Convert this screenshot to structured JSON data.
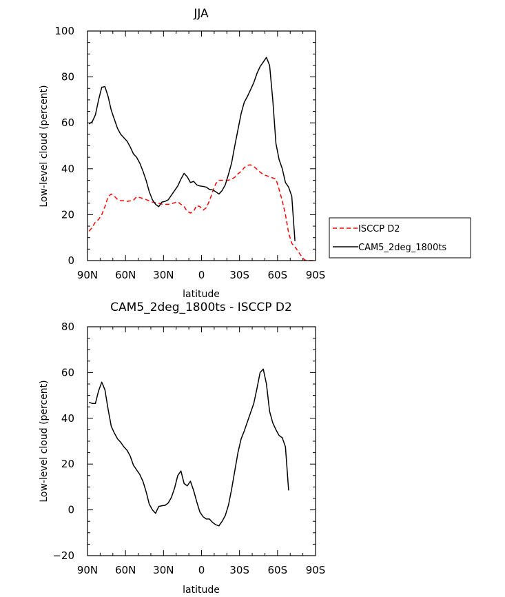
{
  "chart_data": [
    {
      "type": "line",
      "title": "JJA",
      "xlabel": "latitude",
      "ylabel": "Low-level cloud (percent)",
      "xlim": [
        90,
        -90
      ],
      "ylim": [
        0,
        100
      ],
      "xticks": [
        {
          "value": 90,
          "label": "90N"
        },
        {
          "value": 60,
          "label": "60N"
        },
        {
          "value": 30,
          "label": "30N"
        },
        {
          "value": 0,
          "label": "0"
        },
        {
          "value": -30,
          "label": "30S"
        },
        {
          "value": -60,
          "label": "60S"
        },
        {
          "value": -90,
          "label": "90S"
        }
      ],
      "yticks": [
        0,
        20,
        40,
        60,
        80,
        100
      ],
      "legend_position": "right",
      "series": [
        {
          "name": "ISCCP D2",
          "color": "#ff0000",
          "dash": "dashed",
          "points": [
            [
              88.75,
              12.8
            ],
            [
              86.25,
              14.5
            ],
            [
              83.75,
              16.8
            ],
            [
              81.25,
              17.9
            ],
            [
              78.75,
              20.0
            ],
            [
              76.25,
              23.5
            ],
            [
              73.75,
              27.8
            ],
            [
              71.25,
              29.0
            ],
            [
              68.75,
              28.0
            ],
            [
              66.25,
              26.6
            ],
            [
              63.75,
              26.1
            ],
            [
              61.25,
              26.1
            ],
            [
              58.75,
              25.8
            ],
            [
              56.25,
              26.0
            ],
            [
              53.75,
              26.3
            ],
            [
              51.25,
              27.8
            ],
            [
              48.75,
              27.5
            ],
            [
              46.25,
              27.0
            ],
            [
              43.75,
              26.6
            ],
            [
              41.25,
              26.0
            ],
            [
              38.75,
              25.5
            ],
            [
              36.25,
              25.2
            ],
            [
              33.75,
              25.0
            ],
            [
              31.25,
              24.6
            ],
            [
              28.75,
              24.5
            ],
            [
              26.25,
              24.5
            ],
            [
              23.75,
              24.8
            ],
            [
              21.25,
              25.2
            ],
            [
              18.75,
              25.6
            ],
            [
              16.25,
              24.5
            ],
            [
              13.75,
              23.5
            ],
            [
              11.25,
              21.5
            ],
            [
              8.75,
              20.7
            ],
            [
              6.25,
              21.5
            ],
            [
              3.75,
              24.0
            ],
            [
              1.25,
              23.5
            ],
            [
              -1.25,
              22.0
            ],
            [
              -3.75,
              23.0
            ],
            [
              -6.25,
              26.0
            ],
            [
              -8.75,
              30.0
            ],
            [
              -11.25,
              33.5
            ],
            [
              -13.75,
              35.0
            ],
            [
              -16.25,
              35.0
            ],
            [
              -18.75,
              35.0
            ],
            [
              -21.25,
              35.0
            ],
            [
              -23.75,
              35.5
            ],
            [
              -26.25,
              36.3
            ],
            [
              -28.75,
              37.8
            ],
            [
              -31.25,
              38.8
            ],
            [
              -33.75,
              40.5
            ],
            [
              -36.25,
              41.5
            ],
            [
              -38.75,
              41.7
            ],
            [
              -41.25,
              41.0
            ],
            [
              -43.75,
              39.8
            ],
            [
              -46.25,
              38.5
            ],
            [
              -48.75,
              37.5
            ],
            [
              -51.25,
              37.0
            ],
            [
              -53.75,
              36.5
            ],
            [
              -56.25,
              36.0
            ],
            [
              -58.75,
              35.5
            ],
            [
              -61.25,
              31.0
            ],
            [
              -63.75,
              26.0
            ],
            [
              -66.25,
              20.0
            ],
            [
              -68.75,
              12.0
            ],
            [
              -71.25,
              7.5
            ],
            [
              -73.75,
              6.0
            ],
            [
              -76.25,
              4.0
            ],
            [
              -78.75,
              2.0
            ],
            [
              -81.25,
              0.3
            ],
            [
              -83.75,
              0.0
            ],
            [
              -86.25,
              0.0
            ],
            [
              -88.75,
              0.0
            ]
          ]
        },
        {
          "name": "CAM5_2deg_1800ts",
          "color": "#000000",
          "dash": "solid",
          "points": [
            [
              88.75,
              59.5
            ],
            [
              86.25,
              60.5
            ],
            [
              83.75,
              63.5
            ],
            [
              81.25,
              70.0
            ],
            [
              78.75,
              75.5
            ],
            [
              76.25,
              75.8
            ],
            [
              73.75,
              71.5
            ],
            [
              71.25,
              65.5
            ],
            [
              68.75,
              61.5
            ],
            [
              66.25,
              57.5
            ],
            [
              63.75,
              55.0
            ],
            [
              61.25,
              53.5
            ],
            [
              58.75,
              52.0
            ],
            [
              56.25,
              49.5
            ],
            [
              53.75,
              46.5
            ],
            [
              51.25,
              45.0
            ],
            [
              48.75,
              42.5
            ],
            [
              46.25,
              39.0
            ],
            [
              43.75,
              35.0
            ],
            [
              41.25,
              30.0
            ],
            [
              38.75,
              26.5
            ],
            [
              36.25,
              24.5
            ],
            [
              33.75,
              23.5
            ],
            [
              31.25,
              25.5
            ],
            [
              28.75,
              25.8
            ],
            [
              26.25,
              26.5
            ],
            [
              23.75,
              28.5
            ],
            [
              21.25,
              30.5
            ],
            [
              18.75,
              32.5
            ],
            [
              16.25,
              35.5
            ],
            [
              13.75,
              38.0
            ],
            [
              11.25,
              36.5
            ],
            [
              8.75,
              34.0
            ],
            [
              6.25,
              34.5
            ],
            [
              3.75,
              33.0
            ],
            [
              1.25,
              32.5
            ],
            [
              -1.25,
              32.3
            ],
            [
              -3.75,
              32.0
            ],
            [
              -6.25,
              31.0
            ],
            [
              -8.75,
              30.8
            ],
            [
              -11.25,
              30.0
            ],
            [
              -13.75,
              29.0
            ],
            [
              -16.25,
              30.5
            ],
            [
              -18.75,
              33.0
            ],
            [
              -21.25,
              37.5
            ],
            [
              -23.75,
              42.5
            ],
            [
              -26.25,
              50.0
            ],
            [
              -28.75,
              57.0
            ],
            [
              -31.25,
              64.0
            ],
            [
              -33.75,
              69.0
            ],
            [
              -36.25,
              71.5
            ],
            [
              -38.75,
              74.5
            ],
            [
              -41.25,
              77.5
            ],
            [
              -43.75,
              81.5
            ],
            [
              -46.25,
              84.5
            ],
            [
              -48.75,
              86.5
            ],
            [
              -51.25,
              88.5
            ],
            [
              -53.75,
              85.0
            ],
            [
              -56.25,
              70.0
            ],
            [
              -58.75,
              51.0
            ],
            [
              -61.25,
              44.0
            ],
            [
              -63.75,
              40.0
            ],
            [
              -66.25,
              34.0
            ],
            [
              -68.75,
              32.0
            ],
            [
              -71.25,
              28.0
            ],
            [
              -73.75,
              8.5
            ]
          ]
        }
      ]
    },
    {
      "type": "line",
      "title": "CAM5_2deg_1800ts - ISCCP D2",
      "xlabel": "latitude",
      "ylabel": "Low-level cloud (percent)",
      "xlim": [
        90,
        -90
      ],
      "ylim": [
        -20,
        80
      ],
      "xticks": [
        {
          "value": 90,
          "label": "90N"
        },
        {
          "value": 60,
          "label": "60N"
        },
        {
          "value": 30,
          "label": "30N"
        },
        {
          "value": 0,
          "label": "0"
        },
        {
          "value": -30,
          "label": "30S"
        },
        {
          "value": -60,
          "label": "60S"
        },
        {
          "value": -90,
          "label": "90S"
        }
      ],
      "yticks": [
        -20,
        0,
        20,
        40,
        60,
        80
      ],
      "series": [
        {
          "color": "#000000",
          "dash": "solid",
          "points": [
            [
              88.75,
              47.0
            ],
            [
              86.25,
              46.5
            ],
            [
              83.75,
              46.5
            ],
            [
              81.25,
              52.0
            ],
            [
              78.75,
              55.8
            ],
            [
              76.25,
              52.5
            ],
            [
              73.75,
              44.0
            ],
            [
              71.25,
              36.5
            ],
            [
              68.75,
              33.5
            ],
            [
              66.25,
              31.0
            ],
            [
              63.75,
              29.5
            ],
            [
              61.25,
              27.5
            ],
            [
              58.75,
              26.0
            ],
            [
              56.25,
              23.5
            ],
            [
              53.75,
              19.5
            ],
            [
              51.25,
              17.5
            ],
            [
              48.75,
              15.5
            ],
            [
              46.25,
              12.5
            ],
            [
              43.75,
              8.0
            ],
            [
              41.25,
              2.5
            ],
            [
              38.75,
              0.0
            ],
            [
              36.25,
              -1.5
            ],
            [
              33.75,
              1.5
            ],
            [
              31.25,
              1.8
            ],
            [
              28.75,
              2.0
            ],
            [
              26.25,
              3.0
            ],
            [
              23.75,
              5.5
            ],
            [
              21.25,
              9.5
            ],
            [
              18.75,
              15.0
            ],
            [
              16.25,
              17.0
            ],
            [
              13.75,
              11.5
            ],
            [
              11.25,
              10.5
            ],
            [
              8.75,
              12.5
            ],
            [
              6.25,
              8.5
            ],
            [
              3.75,
              3.5
            ],
            [
              1.25,
              -1.0
            ],
            [
              -1.25,
              -3.0
            ],
            [
              -3.75,
              -4.0
            ],
            [
              -6.25,
              -4.0
            ],
            [
              -8.75,
              -5.5
            ],
            [
              -11.25,
              -6.5
            ],
            [
              -13.75,
              -7.0
            ],
            [
              -16.25,
              -5.0
            ],
            [
              -18.75,
              -2.5
            ],
            [
              -21.25,
              2.0
            ],
            [
              -23.75,
              9.0
            ],
            [
              -26.25,
              17.0
            ],
            [
              -28.75,
              25.0
            ],
            [
              -31.25,
              31.0
            ],
            [
              -33.75,
              34.5
            ],
            [
              -36.25,
              38.5
            ],
            [
              -38.75,
              42.5
            ],
            [
              -41.25,
              46.5
            ],
            [
              -43.75,
              53.0
            ],
            [
              -46.25,
              60.0
            ],
            [
              -48.75,
              61.5
            ],
            [
              -51.25,
              55.0
            ],
            [
              -53.75,
              43.0
            ],
            [
              -56.25,
              38.0
            ],
            [
              -58.75,
              35.0
            ],
            [
              -61.25,
              32.5
            ],
            [
              -63.75,
              31.5
            ],
            [
              -66.25,
              27.5
            ],
            [
              -68.75,
              8.5
            ]
          ]
        }
      ]
    }
  ]
}
